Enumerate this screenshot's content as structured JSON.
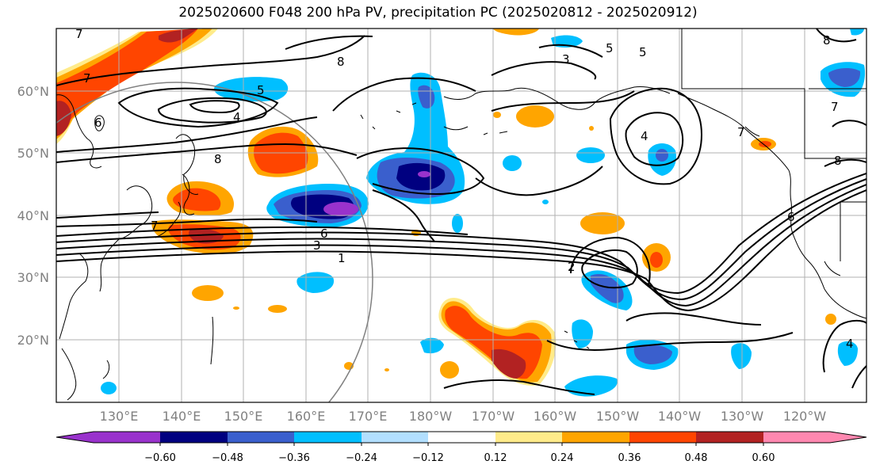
{
  "title": "2025020600 F048 200 hPa PV, precipitation PC (2025020812 - 2025020912)",
  "map": {
    "lat_labels": [
      "60°N",
      "50°N",
      "40°N",
      "30°N",
      "20°N"
    ],
    "lon_labels": [
      "130°E",
      "140°E",
      "150°E",
      "160°E",
      "170°E",
      "180°W",
      "170°W",
      "160°W",
      "150°W",
      "140°W",
      "130°W",
      "120°W"
    ],
    "pv_contour_labels": [
      "7",
      "7",
      "8",
      "5",
      "4",
      "5",
      "3",
      "4",
      "5",
      "8",
      "6",
      "8",
      "6",
      "3",
      "1",
      "2",
      "7",
      "4",
      "6",
      "8",
      "7",
      "7"
    ],
    "colors": {
      "purple": "#9932cc",
      "navy": "#000080",
      "royal_blue": "#3a5fcd",
      "sky_blue": "#00bfff",
      "light_blue": "#b2dfff",
      "white": "#ffffff",
      "light_yellow": "#ffeb8a",
      "orange": "#ffa500",
      "orange_red": "#ff4500",
      "firebrick": "#b22222",
      "pink": "#ff88b0"
    }
  },
  "colorbar": {
    "ticks": [
      "−0.60",
      "−0.48",
      "−0.36",
      "−0.24",
      "−0.12",
      "0.12",
      "0.24",
      "0.36",
      "0.48",
      "0.60"
    ],
    "colors": [
      "#9932cc",
      "#000080",
      "#3a5fcd",
      "#00bfff",
      "#b2dfff",
      "#ffffff",
      "#ffeb8a",
      "#ffa500",
      "#ff4500",
      "#b22222",
      "#ff88b0"
    ]
  }
}
